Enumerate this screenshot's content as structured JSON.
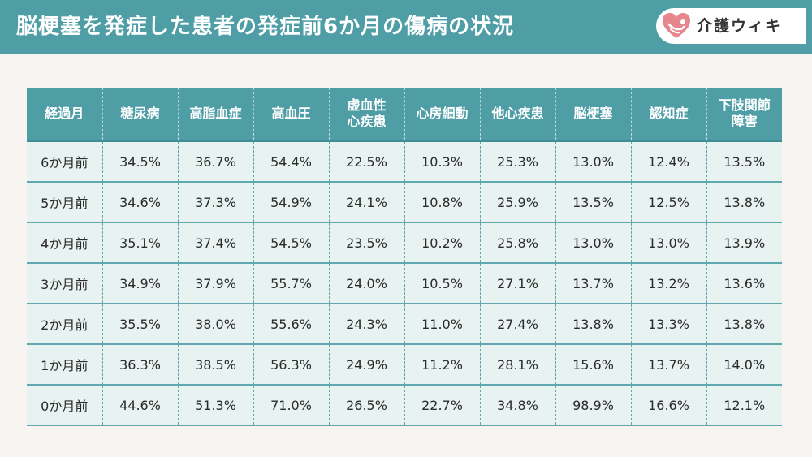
{
  "header": {
    "title": "脳梗塞を発症した患者の発症前6か月の傷病の状況",
    "brand_name": "介護ウィキ"
  },
  "table": {
    "columns": [
      "経過月",
      "糖尿病",
      "高脂血症",
      "高血圧",
      "虚血性\n心疾患",
      "心房細動",
      "他心疾患",
      "脳梗塞",
      "認知症",
      "下肢関節\n障害"
    ],
    "rows": [
      [
        "6か月前",
        "34.5%",
        "36.7%",
        "54.4%",
        "22.5%",
        "10.3%",
        "25.3%",
        "13.0%",
        "12.4%",
        "13.5%"
      ],
      [
        "5か月前",
        "34.6%",
        "37.3%",
        "54.9%",
        "24.1%",
        "10.8%",
        "25.9%",
        "13.5%",
        "12.5%",
        "13.8%"
      ],
      [
        "4か月前",
        "35.1%",
        "37.4%",
        "54.5%",
        "23.5%",
        "10.2%",
        "25.8%",
        "13.0%",
        "13.0%",
        "13.9%"
      ],
      [
        "3か月前",
        "34.9%",
        "37.9%",
        "55.7%",
        "24.0%",
        "10.5%",
        "27.1%",
        "13.7%",
        "13.2%",
        "13.6%"
      ],
      [
        "2か月前",
        "35.5%",
        "38.0%",
        "55.6%",
        "24.3%",
        "11.0%",
        "27.4%",
        "13.8%",
        "13.3%",
        "13.8%"
      ],
      [
        "1か月前",
        "36.3%",
        "38.5%",
        "56.3%",
        "24.9%",
        "11.2%",
        "28.1%",
        "15.6%",
        "13.7%",
        "14.0%"
      ],
      [
        "0か月前",
        "44.6%",
        "51.3%",
        "71.0%",
        "26.5%",
        "22.7%",
        "34.8%",
        "98.9%",
        "16.6%",
        "12.1%"
      ]
    ]
  },
  "colors": {
    "header_bg": "#4f9ea6",
    "cell_bg": "#e7f2f1",
    "line": "#5fa8b0",
    "page_bg": "#f7f4f1",
    "logo_heart": "#e8868e"
  },
  "icons": {
    "brand_logo": "heart-hands-icon"
  }
}
